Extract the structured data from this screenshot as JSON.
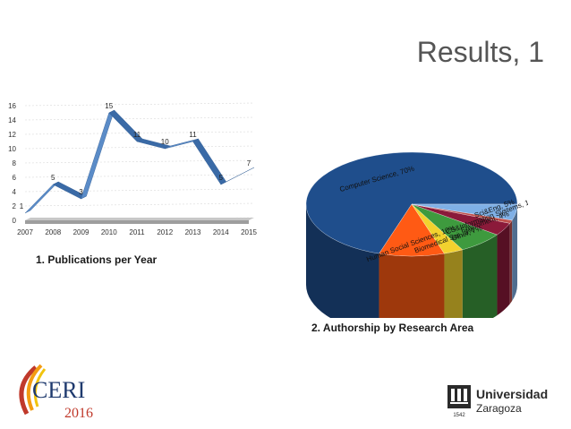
{
  "slide": {
    "title": "Results, 1"
  },
  "captions": {
    "chart1": "1. Publications per Year",
    "chart2": "2. Authorship by Research Area"
  },
  "logos": {
    "ceri": {
      "name": "CERI",
      "year": "2016"
    },
    "university": {
      "line1": "Universidad",
      "line2": "Zaragoza",
      "seal_year": "1542"
    }
  },
  "colors": {
    "line_series": "#4a7ab5",
    "pie_computer_science": "#1f4e8c",
    "pie_humanities_social": "#ff5a14",
    "pie_biomedical": "#f2d22e",
    "pie_green": "#3e9a3e",
    "pie_maroon": "#8b1a3a",
    "pie_light_blue": "#7fb0e6"
  },
  "chart_data": [
    {
      "type": "line",
      "x": [
        2007,
        2008,
        2009,
        2010,
        2011,
        2012,
        2013,
        2014,
        2015
      ],
      "values": [
        1,
        5,
        3,
        15,
        11,
        10,
        11,
        5,
        7
      ],
      "data_labels": [
        "1",
        "5",
        "3",
        "15",
        "11",
        "10",
        "11",
        "5",
        "7"
      ],
      "x_ticks": [
        "2007",
        "2008",
        "2009",
        "2010",
        "2011",
        "2012",
        "2013",
        "2014",
        "2015"
      ],
      "y_ticks": [
        "0",
        "2",
        "4",
        "6",
        "8",
        "10",
        "12",
        "14",
        "16"
      ],
      "ylim": [
        0,
        16
      ],
      "title": "",
      "xlabel": "",
      "ylabel": "",
      "grid": true,
      "style": "3d"
    },
    {
      "type": "pie",
      "style": "3d",
      "slices": [
        {
          "label": "Computer Science, 70%",
          "value": 70,
          "color": "#1f4e8c"
        },
        {
          "label": "Human Social Sciences, 10%",
          "value": 10,
          "color": "#ff5a14"
        },
        {
          "label": "Biomedical Sci., 3%",
          "value": 3,
          "color": "#f2d22e"
        },
        {
          "label": "Other, 7%",
          "value": 7,
          "color": "#3e9a3e"
        },
        {
          "label": "Enviroment, 4%",
          "value": 4,
          "color": "#8b1a3a"
        },
        {
          "label": "CS&Information Systems, 1%",
          "value": 1,
          "color": "#c0504d"
        },
        {
          "label": "Sci&Eng, 5%",
          "value": 5,
          "color": "#7fb0e6"
        }
      ]
    }
  ]
}
